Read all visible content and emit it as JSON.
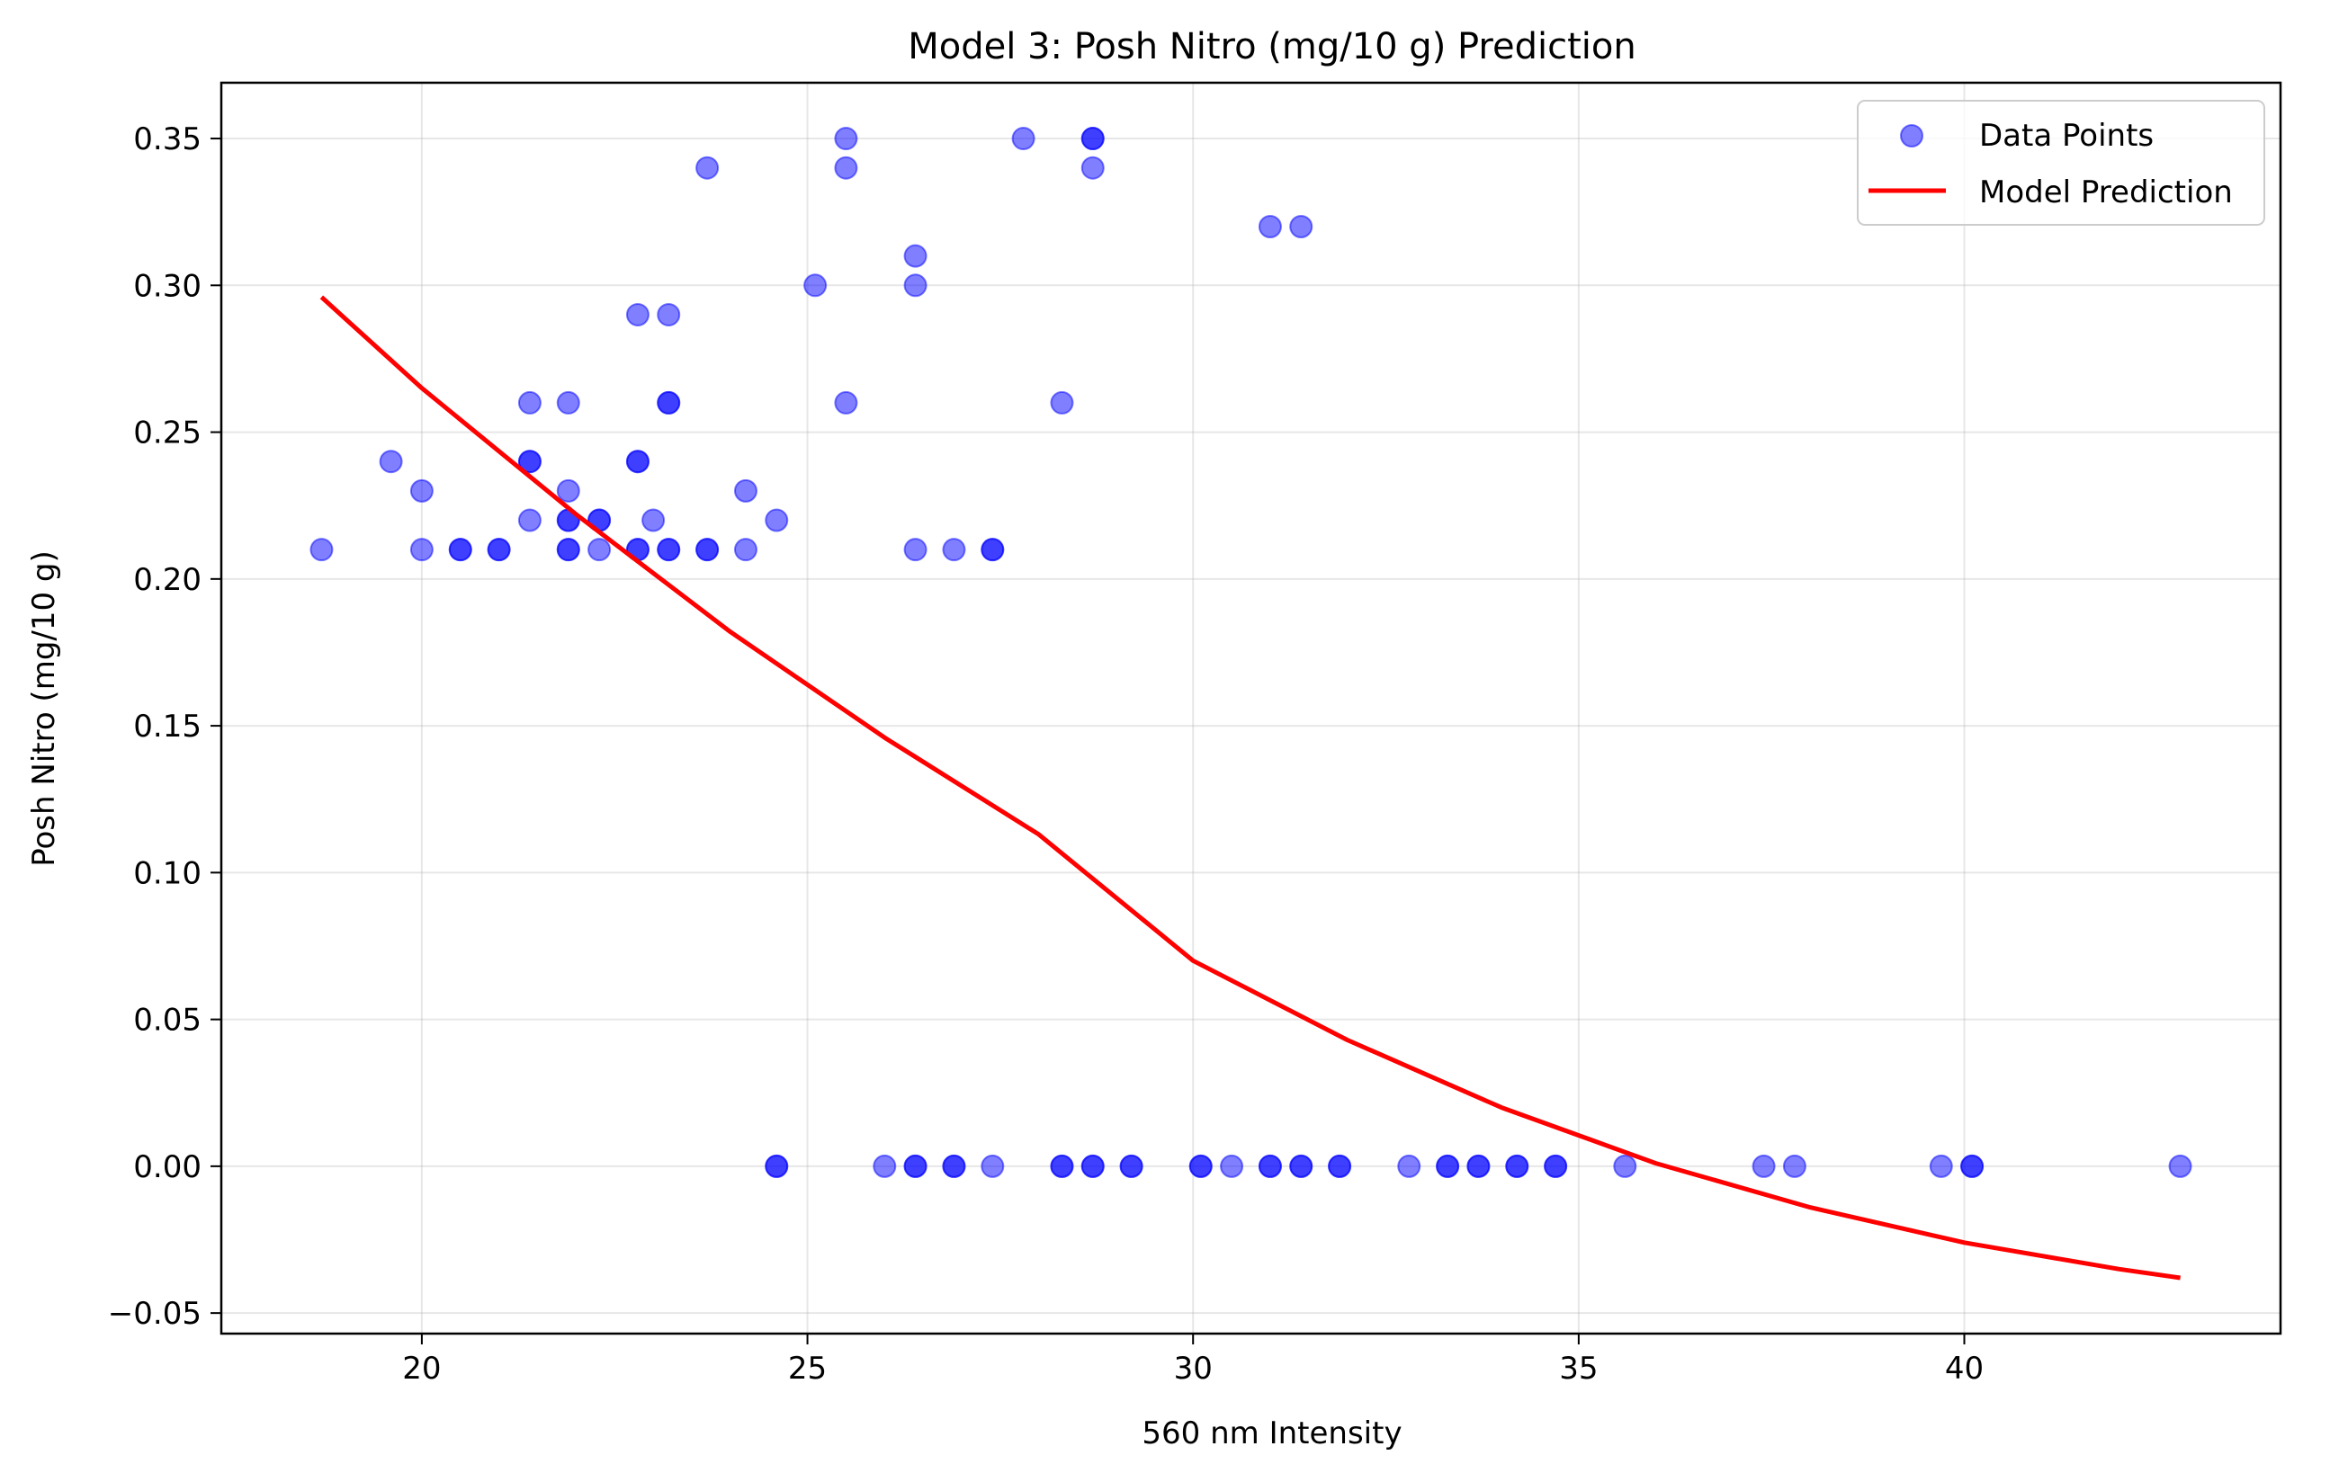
{
  "chart_data": {
    "type": "scatter",
    "title": "Model 3: Posh Nitro (mg/10 g) Prediction",
    "xlabel": "560 nm Intensity",
    "ylabel": "Posh Nitro (mg/10 g)",
    "xlim": [
      17.4,
      44.1
    ],
    "ylim": [
      -0.057,
      0.369
    ],
    "xticks": [
      20,
      25,
      30,
      35,
      40
    ],
    "xtick_labels": [
      "20",
      "25",
      "30",
      "35",
      "40"
    ],
    "yticks": [
      -0.05,
      0.0,
      0.05,
      0.1,
      0.15,
      0.2,
      0.25,
      0.3,
      0.35
    ],
    "ytick_labels": [
      "−0.05",
      "0.00",
      "0.05",
      "0.10",
      "0.15",
      "0.20",
      "0.25",
      "0.30",
      "0.35"
    ],
    "grid": true,
    "legend_position": "top-right",
    "series": [
      {
        "name": "Data Points",
        "kind": "scatter",
        "color": "#0000ff",
        "alpha": 0.5,
        "points": [
          [
            18.7,
            0.21
          ],
          [
            19.6,
            0.24
          ],
          [
            20.0,
            0.23
          ],
          [
            20.0,
            0.21
          ],
          [
            20.5,
            0.21
          ],
          [
            20.5,
            0.21
          ],
          [
            21.0,
            0.21
          ],
          [
            21.0,
            0.21
          ],
          [
            21.4,
            0.26
          ],
          [
            21.4,
            0.24
          ],
          [
            21.4,
            0.24
          ],
          [
            21.4,
            0.22
          ],
          [
            21.9,
            0.26
          ],
          [
            21.9,
            0.23
          ],
          [
            21.9,
            0.22
          ],
          [
            21.9,
            0.22
          ],
          [
            21.9,
            0.21
          ],
          [
            21.9,
            0.21
          ],
          [
            22.3,
            0.22
          ],
          [
            22.3,
            0.22
          ],
          [
            22.3,
            0.21
          ],
          [
            22.8,
            0.29
          ],
          [
            22.8,
            0.24
          ],
          [
            22.8,
            0.24
          ],
          [
            22.8,
            0.21
          ],
          [
            22.8,
            0.21
          ],
          [
            23.0,
            0.22
          ],
          [
            23.2,
            0.29
          ],
          [
            23.2,
            0.26
          ],
          [
            23.2,
            0.26
          ],
          [
            23.2,
            0.21
          ],
          [
            23.2,
            0.21
          ],
          [
            23.7,
            0.34
          ],
          [
            23.7,
            0.21
          ],
          [
            23.7,
            0.21
          ],
          [
            24.2,
            0.23
          ],
          [
            24.2,
            0.21
          ],
          [
            24.6,
            0.22
          ],
          [
            25.1,
            0.3
          ],
          [
            25.5,
            0.35
          ],
          [
            25.5,
            0.34
          ],
          [
            25.5,
            0.26
          ],
          [
            26.4,
            0.31
          ],
          [
            26.4,
            0.3
          ],
          [
            26.4,
            0.21
          ],
          [
            26.9,
            0.21
          ],
          [
            27.4,
            0.21
          ],
          [
            27.4,
            0.21
          ],
          [
            27.8,
            0.35
          ],
          [
            28.3,
            0.26
          ],
          [
            28.7,
            0.35
          ],
          [
            28.7,
            0.35
          ],
          [
            28.7,
            0.34
          ],
          [
            31.0,
            0.32
          ],
          [
            31.4,
            0.32
          ],
          [
            24.6,
            0.0
          ],
          [
            24.6,
            0.0
          ],
          [
            26.0,
            0.0
          ],
          [
            26.4,
            0.0
          ],
          [
            26.4,
            0.0
          ],
          [
            26.9,
            0.0
          ],
          [
            26.9,
            0.0
          ],
          [
            27.4,
            0.0
          ],
          [
            28.3,
            0.0
          ],
          [
            28.3,
            0.0
          ],
          [
            28.7,
            0.0
          ],
          [
            28.7,
            0.0
          ],
          [
            29.2,
            0.0
          ],
          [
            29.2,
            0.0
          ],
          [
            30.1,
            0.0
          ],
          [
            30.1,
            0.0
          ],
          [
            30.5,
            0.0
          ],
          [
            31.0,
            0.0
          ],
          [
            31.0,
            0.0
          ],
          [
            31.4,
            0.0
          ],
          [
            31.4,
            0.0
          ],
          [
            31.9,
            0.0
          ],
          [
            31.9,
            0.0
          ],
          [
            32.8,
            0.0
          ],
          [
            33.3,
            0.0
          ],
          [
            33.3,
            0.0
          ],
          [
            33.7,
            0.0
          ],
          [
            33.7,
            0.0
          ],
          [
            34.2,
            0.0
          ],
          [
            34.2,
            0.0
          ],
          [
            34.7,
            0.0
          ],
          [
            34.7,
            0.0
          ],
          [
            35.6,
            0.0
          ],
          [
            37.4,
            0.0
          ],
          [
            37.8,
            0.0
          ],
          [
            39.7,
            0.0
          ],
          [
            40.1,
            0.0
          ],
          [
            40.1,
            0.0
          ],
          [
            42.8,
            0.0
          ]
        ]
      },
      {
        "name": "Model Prediction",
        "kind": "line",
        "color": "#ff0000",
        "points": [
          [
            18.7,
            0.296
          ],
          [
            20,
            0.265
          ],
          [
            22,
            0.222
          ],
          [
            24,
            0.182
          ],
          [
            26,
            0.146
          ],
          [
            28,
            0.113
          ],
          [
            30,
            0.07
          ],
          [
            32,
            0.043
          ],
          [
            34,
            0.02
          ],
          [
            36,
            0.001
          ],
          [
            38,
            -0.014
          ],
          [
            40,
            -0.026
          ],
          [
            42,
            -0.035
          ],
          [
            42.8,
            -0.038
          ]
        ]
      }
    ]
  }
}
